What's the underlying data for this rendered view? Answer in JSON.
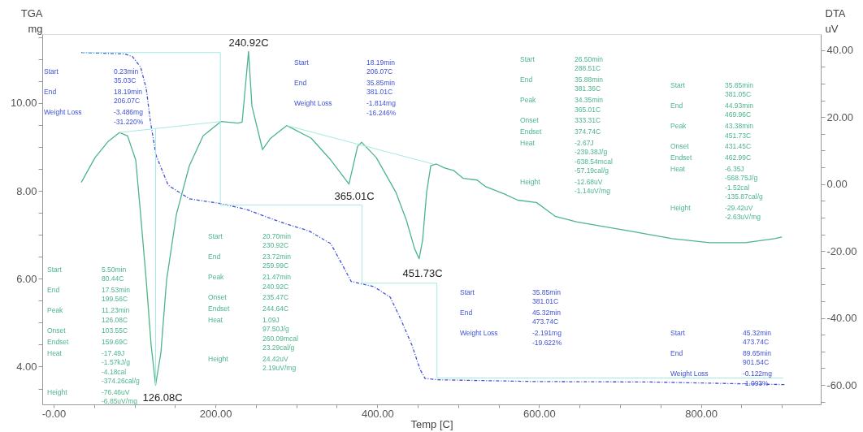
{
  "chart_data": {
    "type": "line",
    "xlabel": "Temp  [C]",
    "ylabel": "TGA\nmg",
    "y2label": "DTA\nuV",
    "xlim": [
      -14,
      948
    ],
    "ylim": [
      3.14,
      11.57
    ],
    "y2lim": [
      -65.8,
      44.8
    ],
    "xticks": [
      {
        "value": 0,
        "label": "-0.00"
      },
      {
        "value": 50,
        "label": null
      },
      {
        "value": 100,
        "label": null
      },
      {
        "value": 150,
        "label": null
      },
      {
        "value": 200,
        "label": "200.00"
      },
      {
        "value": 250,
        "label": null
      },
      {
        "value": 300,
        "label": null
      },
      {
        "value": 350,
        "label": null
      },
      {
        "value": 400,
        "label": "400.00"
      },
      {
        "value": 450,
        "label": null
      },
      {
        "value": 500,
        "label": null
      },
      {
        "value": 550,
        "label": null
      },
      {
        "value": 600,
        "label": "600.00"
      },
      {
        "value": 650,
        "label": null
      },
      {
        "value": 700,
        "label": null
      },
      {
        "value": 750,
        "label": null
      },
      {
        "value": 800,
        "label": "800.00"
      },
      {
        "value": 850,
        "label": null
      },
      {
        "value": 900,
        "label": null
      }
    ],
    "yticks": [
      {
        "value": 3.5,
        "label": null
      },
      {
        "value": 4,
        "label": "4.00"
      },
      {
        "value": 4.5,
        "label": null
      },
      {
        "value": 5,
        "label": null
      },
      {
        "value": 5.5,
        "label": null
      },
      {
        "value": 6,
        "label": "6.00"
      },
      {
        "value": 6.5,
        "label": null
      },
      {
        "value": 7,
        "label": null
      },
      {
        "value": 7.5,
        "label": null
      },
      {
        "value": 8,
        "label": "8.00"
      },
      {
        "value": 8.5,
        "label": null
      },
      {
        "value": 9,
        "label": null
      },
      {
        "value": 9.5,
        "label": null
      },
      {
        "value": 10,
        "label": "10.00"
      },
      {
        "value": 10.5,
        "label": null
      },
      {
        "value": 11,
        "label": null
      },
      {
        "value": 11.5,
        "label": null
      }
    ],
    "y2ticks": [
      {
        "value": -65,
        "label": null
      },
      {
        "value": -60,
        "label": "-60.00"
      },
      {
        "value": -55,
        "label": null
      },
      {
        "value": -50,
        "label": null
      },
      {
        "value": -45,
        "label": null
      },
      {
        "value": -40,
        "label": "-40.00"
      },
      {
        "value": -35,
        "label": null
      },
      {
        "value": -30,
        "label": null
      },
      {
        "value": -25,
        "label": null
      },
      {
        "value": -20,
        "label": "-20.00"
      },
      {
        "value": -15,
        "label": null
      },
      {
        "value": -10,
        "label": null
      },
      {
        "value": -5,
        "label": null
      },
      {
        "value": 0,
        "label": "0.00"
      },
      {
        "value": 5,
        "label": null
      },
      {
        "value": 10,
        "label": null
      },
      {
        "value": 15,
        "label": null
      },
      {
        "value": 20,
        "label": "20.00"
      },
      {
        "value": 25,
        "label": null
      },
      {
        "value": 30,
        "label": null
      },
      {
        "value": 35,
        "label": null
      },
      {
        "value": 40,
        "label": "40.00"
      }
    ],
    "grid": false,
    "marker": "none",
    "series": [
      {
        "color": "#3f51d8",
        "line_style": "dashed",
        "x": [
          34.2,
          87.4,
          97.4,
          107.5,
          114.5,
          119.5,
          126.6,
          141.6,
          167.8,
          206.9,
          238.1,
          258.2,
          285.3,
          315.4,
          342.5,
          355.6,
          367.7,
          395.8,
          416,
          429,
          443,
          453,
          459,
          476,
          597,
          737,
          903
        ],
        "values": [
          11.15,
          11.12,
          11.06,
          10.82,
          10.33,
          9.6,
          8.81,
          8.13,
          7.82,
          7.71,
          7.58,
          7.44,
          7.26,
          7.09,
          6.8,
          6.36,
          5.94,
          5.82,
          5.58,
          5.08,
          4.48,
          3.93,
          3.73,
          3.7,
          3.66,
          3.65,
          3.59
        ]
      },
      {
        "color": "#4cb58c",
        "axis": "y2",
        "x": [
          34.2,
          51.2,
          67.3,
          81.4,
          91.4,
          101.5,
          107.5,
          114.5,
          120.5,
          126.08,
          132.6,
          139.6,
          151.7,
          167.8,
          184.8,
          206.9,
          228,
          233,
          240.92,
          245.1,
          258.2,
          268.2,
          288.3,
          318.4,
          342.5,
          365.01,
          375.7,
          380.7,
          398.8,
          422.9,
          436,
          446,
          451.73,
          456,
          461,
          466.1,
          473.1,
          483.2,
          494.2,
          506.3,
          523.4,
          533.4,
          556.5,
          573.6,
          596.7,
          619.8,
          646.9,
          704.2,
          764.4,
          810.7,
          854.8,
          891,
          900
        ],
        "values": [
          0.5,
          7.9,
          12.7,
          15.4,
          14.4,
          7.2,
          -8.9,
          -28.8,
          -48.0,
          -60.0,
          -50.4,
          -28.8,
          -9.1,
          5.5,
          14.4,
          18.7,
          18.2,
          18.5,
          39.6,
          23.3,
          10.3,
          13.7,
          17.5,
          13.7,
          7.2,
          0.0,
          11.3,
          12.5,
          7.9,
          -2.4,
          -10.8,
          -19.2,
          -22.3,
          -16.8,
          -2.4,
          5.5,
          6.0,
          4.8,
          4.1,
          1.7,
          1.2,
          -0.7,
          -2.9,
          -4.8,
          -5.5,
          -9.6,
          -11.3,
          -13.7,
          -16.3,
          -17.5,
          -17.5,
          -16.3,
          -15.8
        ]
      },
      {
        "color": "#a6e9e3",
        "x": [
          35.03,
          206.07,
          206.07,
          381.01,
          381.01,
          473.74,
          473.74,
          901.54
        ],
        "values": [
          11.15,
          11.15,
          7.68,
          7.68,
          5.9,
          5.9,
          3.74,
          3.74
        ]
      },
      {
        "color": "#a6e9e3",
        "axis": "y2",
        "x": [
          81.4,
          206.9
        ],
        "values": [
          15.4,
          18.7
        ]
      },
      {
        "color": "#a6e9e3",
        "axis": "y2",
        "x": [
          126.08,
          126.08
        ],
        "values": [
          -60.0,
          16.6
        ]
      },
      {
        "color": "#a6e9e3",
        "axis": "y2",
        "x": [
          288.3,
          469.0
        ],
        "values": [
          17.5,
          6.0
        ]
      }
    ],
    "annotations": [
      "240.92C",
      "126.08C",
      "365.01C",
      "451.73C",
      "Start",
      "0.23min",
      "35.03C",
      "End",
      "18.19min",
      "206.07C",
      "Weight Loss",
      "-3.486mg",
      "-31.220%",
      "Start",
      "18.19min",
      "206.07C",
      "End",
      "35.85min",
      "381.01C",
      "Weight Loss",
      "-1.814mg",
      "-16.246%",
      "Start",
      "26.50min",
      "288.51C",
      "End",
      "35.88min",
      "381.36C",
      "Peak",
      "34.35min",
      "365.01C",
      "Onset",
      "333.31C",
      "Endset",
      "374.74C",
      "Heat",
      "-2.67J",
      "-239.38J/g",
      "-638.54mcal",
      "-57.19cal/g",
      "Height",
      "-12.68uV",
      "-1.14uV/mg",
      "Start",
      "35.85min",
      "381.05C",
      "End",
      "44.93min",
      "469.96C",
      "Peak",
      "43.38min",
      "451.73C",
      "Onset",
      "431.45C",
      "Endset",
      "462.99C",
      "Heat",
      "-6.35J",
      "-568.75J/g",
      "-1.52cal",
      "-135.87cal/g",
      "Height",
      "-29.42uV",
      "-2.63uV/mg",
      "Start",
      "5.50min",
      "80.44C",
      "End",
      "17.53min",
      "199.56C",
      "Peak",
      "11.23min",
      "126.08C",
      "Onset",
      "103.55C",
      "Endset",
      "159.69C",
      "Heat",
      "-17.49J",
      "-1.57kJ/g",
      "-4.18cal",
      "-374.26cal/g",
      "Height",
      "-76.46uV",
      "-6.85uV/mg",
      "Start",
      "20.70min",
      "230.92C",
      "End",
      "23.72min",
      "259.99C",
      "Peak",
      "21.47min",
      "240.92C",
      "Onset",
      "235.47C",
      "Endset",
      "244.64C",
      "Heat",
      "1.09J",
      "97.50J/g",
      "260.09mcal",
      "23.29cal/g",
      "Height",
      "24.42uV",
      "2.19uV/mg",
      "Start",
      "35.85min",
      "381.01C",
      "End",
      "45.32min",
      "473.74C",
      "Weight Loss",
      "-2.191mg",
      "-19.622%",
      "Start",
      "45.32min",
      "473.74C",
      "End",
      "89.65min",
      "901.54C",
      "Weight Loss",
      "-0.122mg",
      "-1.093%"
    ]
  }
}
